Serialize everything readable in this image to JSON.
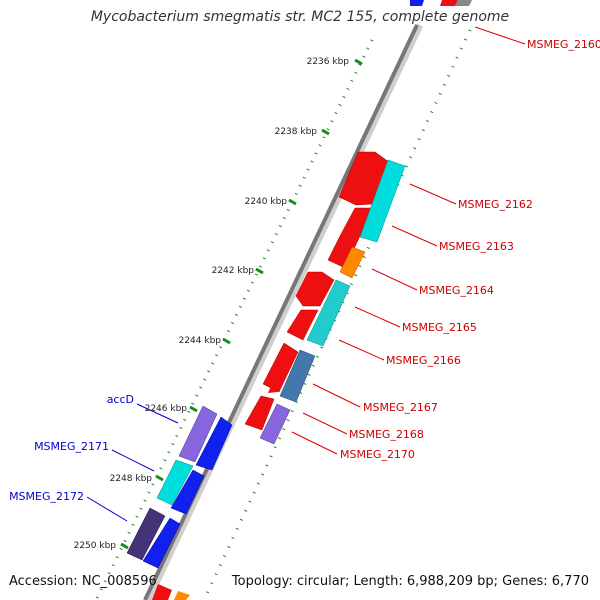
{
  "title": "Mycobacterium smegmatis str. MC2 155, complete genome",
  "accession": "Accession: NC_008596",
  "topology": "Topology: circular; Length: 6,988,209 bp; Genes: 6,770",
  "scale_ticks": [
    "2236 kbp",
    "2238 kbp",
    "2240 kbp",
    "2242 kbp",
    "2244 kbp",
    "2246 kbp",
    "2248 kbp",
    "2250 kbp"
  ],
  "genes": [
    {
      "label": "MSMEG_2160",
      "color": "#cc0000",
      "strand": "reverse"
    },
    {
      "label": "MSMEG_2162",
      "color": "#cc0000",
      "strand": "reverse"
    },
    {
      "label": "MSMEG_2163",
      "color": "#cc0000",
      "strand": "reverse"
    },
    {
      "label": "MSMEG_2164",
      "color": "#cc0000",
      "strand": "reverse"
    },
    {
      "label": "MSMEG_2165",
      "color": "#cc0000",
      "strand": "reverse"
    },
    {
      "label": "MSMEG_2166",
      "color": "#cc0000",
      "strand": "reverse"
    },
    {
      "label": "MSMEG_2167",
      "color": "#cc0000",
      "strand": "reverse"
    },
    {
      "label": "MSMEG_2168",
      "color": "#cc0000",
      "strand": "reverse"
    },
    {
      "label": "MSMEG_2170",
      "color": "#cc0000",
      "strand": "reverse"
    },
    {
      "label": "accD",
      "color": "#0000cc",
      "strand": "forward"
    },
    {
      "label": "MSMEG_2171",
      "color": "#0000cc",
      "strand": "forward"
    },
    {
      "label": "MSMEG_2172",
      "color": "#0000cc",
      "strand": "forward"
    }
  ],
  "colors": {
    "reverse_strand": "#ee0000",
    "forward_strand": "#0000ee",
    "cyan": "#00dddd",
    "orange": "#ff8800",
    "violet": "#8866dd",
    "steelblue": "#4477aa",
    "darkslate": "#443377",
    "backbone": "#777777",
    "tick": "#1a8a1a"
  }
}
